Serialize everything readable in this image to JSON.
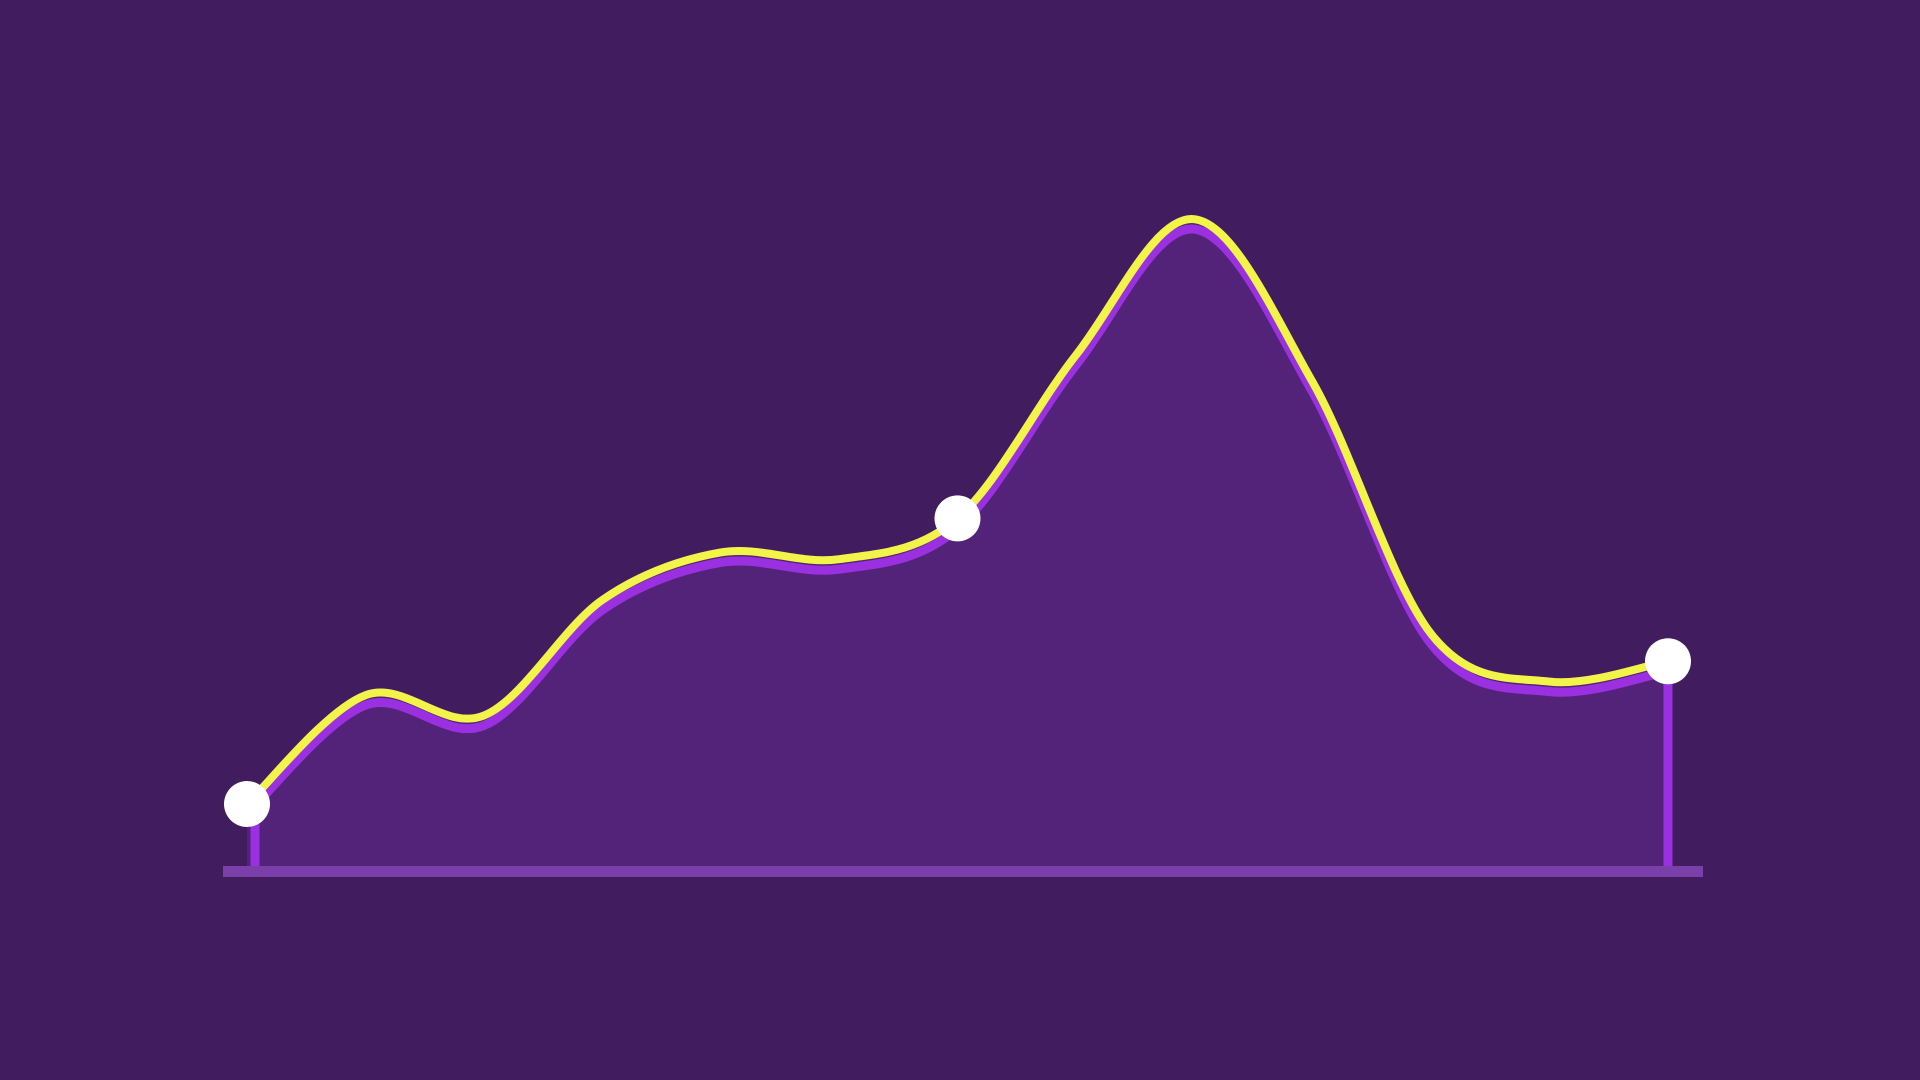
{
  "colors": {
    "background": "#411c5e",
    "area_fill": "#522378",
    "edge_line": "#9b30e0",
    "accent_line": "#f2f44a",
    "baseline": "#7a3fa8",
    "marker": "#ffffff"
  },
  "chart_data": {
    "type": "area",
    "title": "",
    "xlabel": "",
    "ylabel": "",
    "x": [
      0,
      1,
      2,
      3,
      4,
      5,
      6,
      7,
      8,
      9,
      10,
      11,
      12
    ],
    "values": [
      10,
      26,
      23,
      40,
      47,
      46,
      52,
      76,
      96,
      72,
      35,
      28,
      31
    ],
    "xlim": [
      0,
      12
    ],
    "ylim": [
      0,
      100
    ],
    "grid": false,
    "legend": "none",
    "markers": [
      {
        "x": 0,
        "y": 10
      },
      {
        "x": 6,
        "y": 52
      },
      {
        "x": 12,
        "y": 31
      }
    ]
  }
}
